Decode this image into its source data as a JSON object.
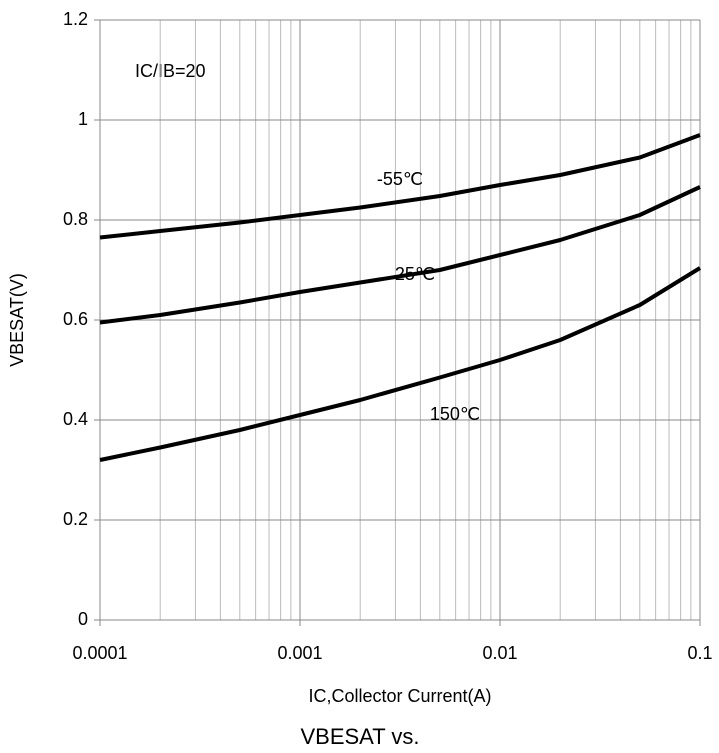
{
  "chart_data": {
    "type": "line",
    "title": "VBESAT vs.",
    "x_label": "IC,Collector Current(A)",
    "y_label": "VBESAT(V)",
    "annotation": "IC/IB=20",
    "x": [
      0.0001,
      0.0002,
      0.0005,
      0.001,
      0.002,
      0.005,
      0.01,
      0.02,
      0.05,
      0.1
    ],
    "series": [
      {
        "name": "-55℃",
        "color": "#000000",
        "values": [
          0.765,
          0.778,
          0.795,
          0.81,
          0.825,
          0.848,
          0.87,
          0.89,
          0.925,
          0.97
        ]
      },
      {
        "name": "25℃",
        "color": "#000000",
        "values": [
          0.595,
          0.61,
          0.635,
          0.656,
          0.675,
          0.7,
          0.73,
          0.76,
          0.81,
          0.866
        ]
      },
      {
        "name": "150℃",
        "color": "#000000",
        "values": [
          0.32,
          0.345,
          0.38,
          0.41,
          0.44,
          0.485,
          0.52,
          0.56,
          0.63,
          0.704
        ]
      }
    ],
    "xlim": [
      0.0001,
      0.1
    ],
    "xticks": [
      0.0001,
      0.001,
      0.01,
      0.1
    ],
    "xscale": "log",
    "ylim": [
      0,
      1.2
    ],
    "yticks": [
      0,
      0.2,
      0.4,
      0.6,
      0.8,
      1,
      1.2
    ],
    "grid": true
  }
}
